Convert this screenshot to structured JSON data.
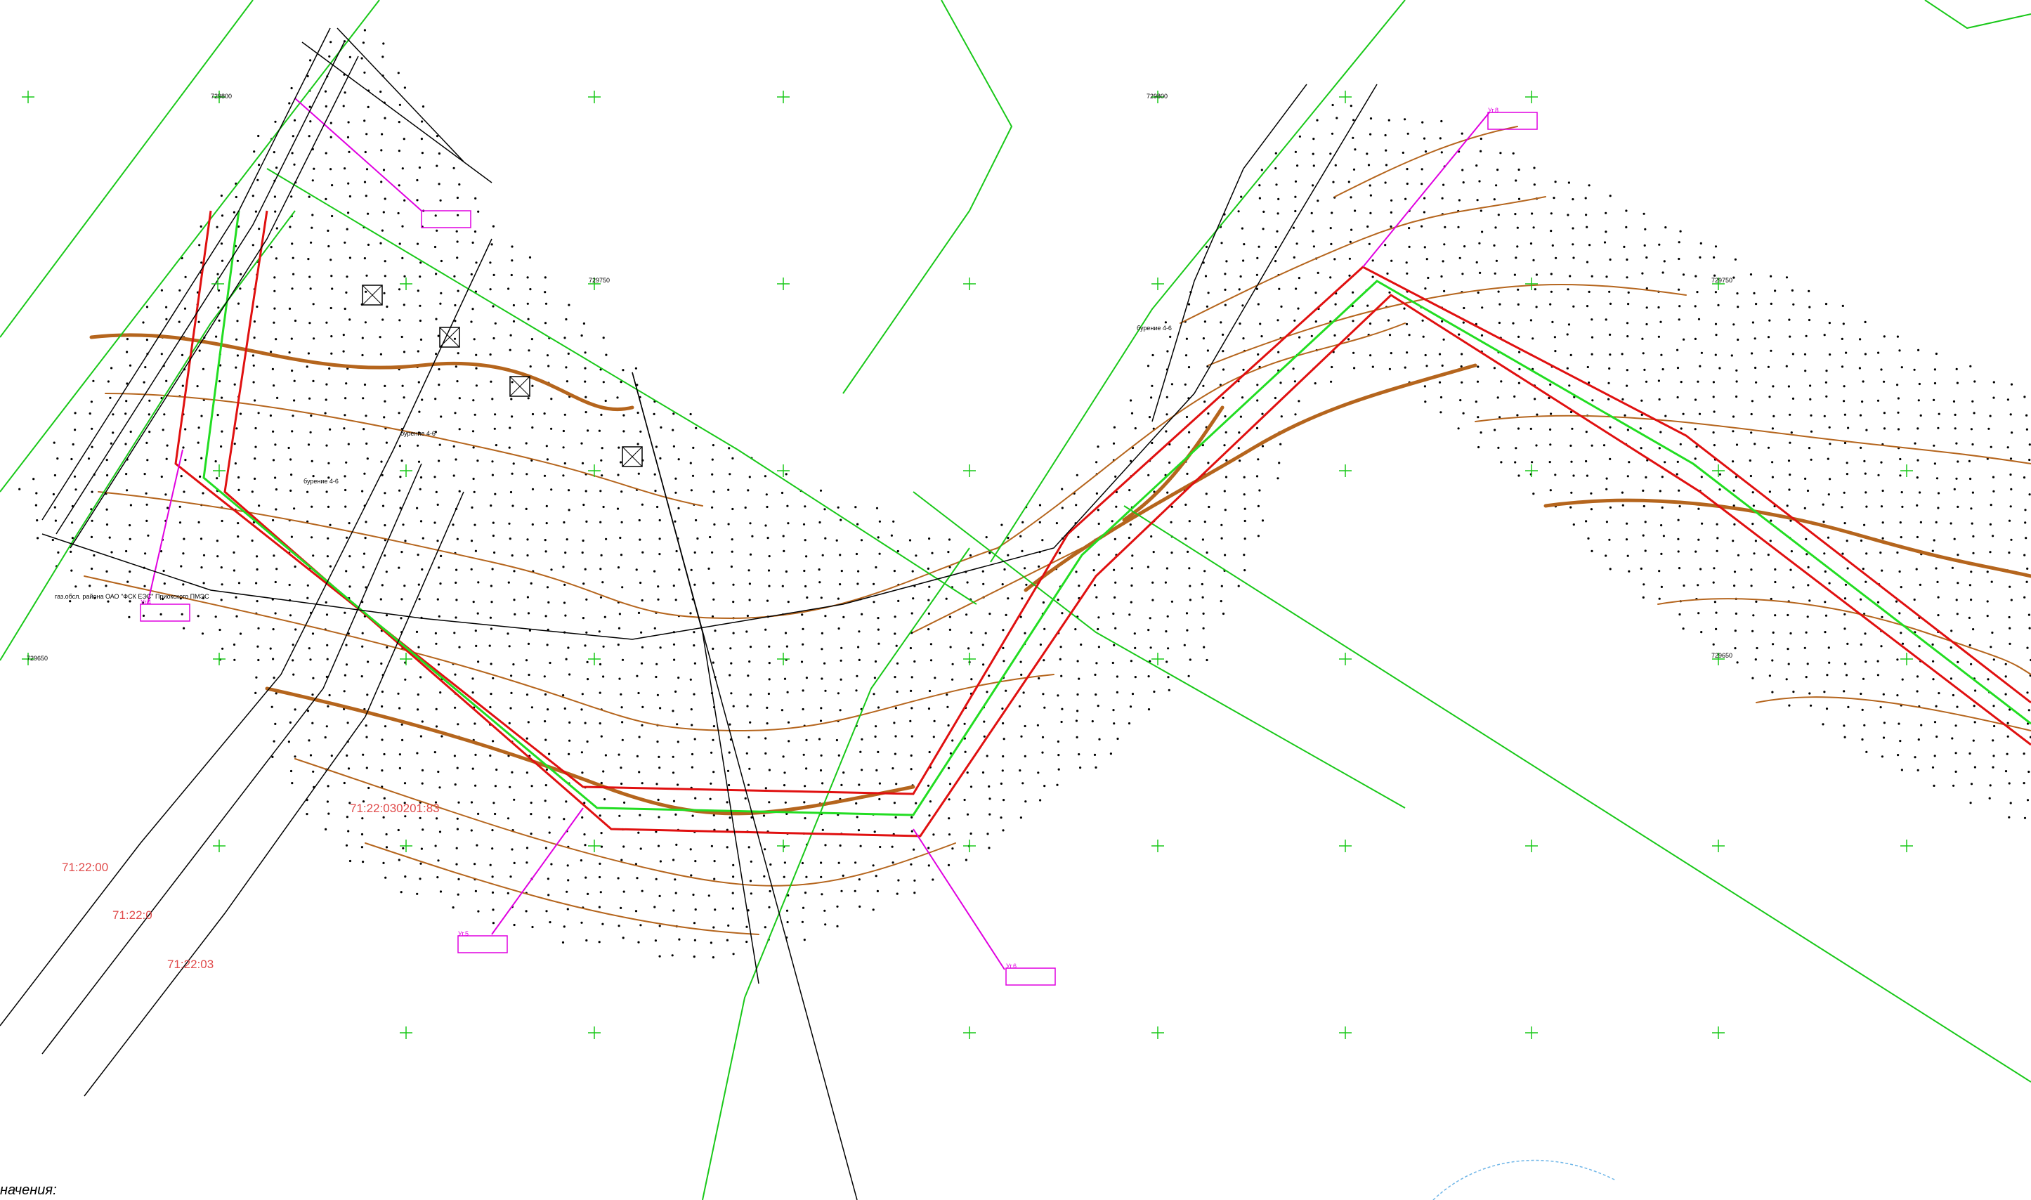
{
  "colors": {
    "green": "#19c819",
    "red": "#e01010",
    "lime": "#22dd22",
    "brown": "#b5651d",
    "magenta": "#e000e0",
    "black": "#000000",
    "parcel_label": "#e04a4a",
    "background": "#ffffff"
  },
  "grid_labels": [
    "729800",
    "729750",
    "729650"
  ],
  "parcel_labels": [
    "71:22:030201:83",
    "71:22:00",
    "71:22:0",
    "71:22:03"
  ],
  "pipeline_note": "газ.обсл. района ОАО \"ФСК ЕЭС\" Приокского ПМЭС",
  "borehole_label": "бурение 4-6",
  "angle_labels": [
    "Уг.4",
    "Уг.5",
    "Уг.6",
    "Уг.8",
    "Уг.9"
  ],
  "legend_text": "начения:"
}
